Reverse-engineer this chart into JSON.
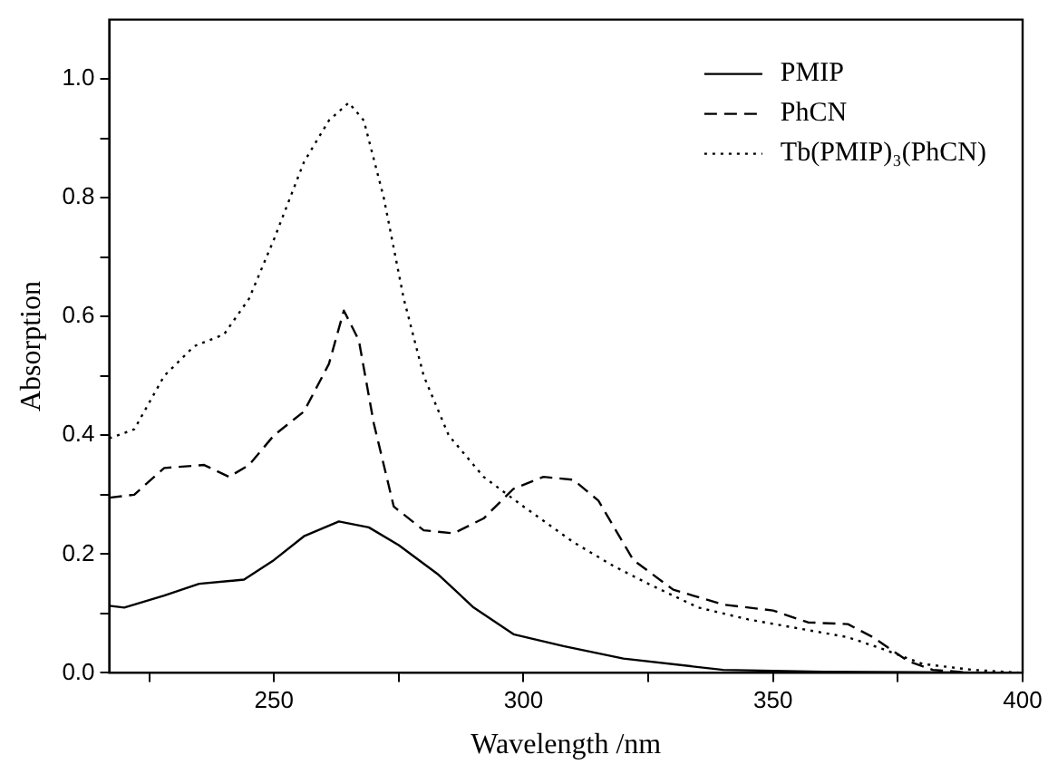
{
  "chart_data": {
    "type": "line",
    "xlabel": "Wavelength /nm",
    "ylabel": "Absorption",
    "xlim": [
      217,
      400
    ],
    "ylim": [
      0,
      1.1
    ],
    "xticks": [
      {
        "value": 225,
        "label": null
      },
      250,
      {
        "value": 275,
        "label": null
      },
      300,
      {
        "value": 325,
        "label": null
      },
      350,
      {
        "value": 375,
        "label": null
      },
      400
    ],
    "yticks": [
      {
        "value": 0,
        "label": "0.0"
      },
      {
        "value": 0.1,
        "label": null
      },
      0.2,
      {
        "value": 0.3,
        "label": null
      },
      0.4,
      {
        "value": 0.5,
        "label": null
      },
      0.6,
      {
        "value": 0.7,
        "label": null
      },
      0.8,
      {
        "value": 0.9,
        "label": null
      },
      {
        "value": 1,
        "label": "1.0"
      }
    ],
    "grid": false,
    "legend": "top right",
    "marker": "none",
    "series": [
      {
        "name": "PMIP",
        "color": "#000000",
        "line_style": "solid",
        "x": [
          217,
          220,
          228,
          235,
          244,
          250,
          256,
          263,
          269,
          275,
          283,
          290,
          298,
          308,
          320,
          340,
          360,
          400
        ],
        "values": [
          0.113,
          0.11,
          0.13,
          0.15,
          0.157,
          0.19,
          0.23,
          0.255,
          0.245,
          0.215,
          0.165,
          0.11,
          0.065,
          0.045,
          0.024,
          0.005,
          0.002,
          0
        ]
      },
      {
        "name": "PhCN",
        "color": "#000000",
        "line_style": "dashed",
        "x": [
          217,
          222,
          228,
          236,
          241,
          245,
          250,
          256,
          261,
          264,
          267,
          270,
          274,
          280,
          286,
          292,
          298,
          304,
          310,
          315,
          322,
          330,
          340,
          350,
          357,
          365,
          370,
          377,
          382,
          390,
          400
        ],
        "values": [
          0.295,
          0.3,
          0.345,
          0.35,
          0.33,
          0.35,
          0.4,
          0.44,
          0.52,
          0.61,
          0.56,
          0.42,
          0.28,
          0.24,
          0.235,
          0.26,
          0.31,
          0.33,
          0.325,
          0.29,
          0.19,
          0.14,
          0.115,
          0.105,
          0.085,
          0.082,
          0.06,
          0.02,
          0.005,
          0,
          0
        ]
      },
      {
        "name": "Tb(PMIP)₃(PhCN)",
        "color": "#000000",
        "line_style": "dotted",
        "x": [
          217,
          222,
          228,
          234,
          240,
          245,
          250,
          256,
          261,
          265,
          268,
          272,
          276,
          280,
          285,
          292,
          300,
          310,
          318,
          325,
          335,
          345,
          355,
          365,
          372,
          380,
          390,
          400
        ],
        "values": [
          0.395,
          0.41,
          0.5,
          0.55,
          0.57,
          0.63,
          0.73,
          0.86,
          0.93,
          0.96,
          0.93,
          0.8,
          0.63,
          0.5,
          0.4,
          0.33,
          0.28,
          0.22,
          0.18,
          0.15,
          0.11,
          0.09,
          0.075,
          0.06,
          0.04,
          0.015,
          0.005,
          0
        ]
      }
    ]
  }
}
